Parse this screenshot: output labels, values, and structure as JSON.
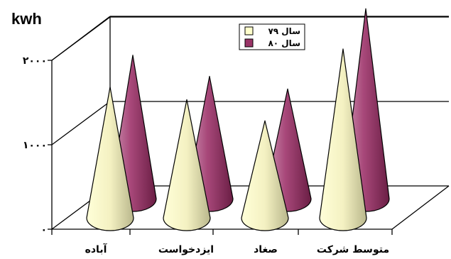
{
  "chart_data": {
    "type": "bar",
    "shape": "cone",
    "three_d": true,
    "unit_label": "kwh",
    "categories": [
      "آباده",
      "ایزدخواست",
      "صغاد",
      "متوسط شرکت"
    ],
    "series": [
      {
        "name": "سال ۷۹",
        "color": "#FFFFCC",
        "values": [
          1550,
          1400,
          1150,
          2000
        ]
      },
      {
        "name": "سال ۸۰",
        "color": "#993366",
        "values": [
          1700,
          1450,
          1300,
          2250
        ]
      }
    ],
    "y_ticks": [
      {
        "value": 0,
        "label": "۰"
      },
      {
        "value": 1000,
        "label": "۱۰۰۰"
      },
      {
        "value": 2000,
        "label": "۲۰۰۰"
      }
    ],
    "ylim": [
      0,
      2000
    ],
    "grid": true,
    "legend_position": "top-right"
  }
}
